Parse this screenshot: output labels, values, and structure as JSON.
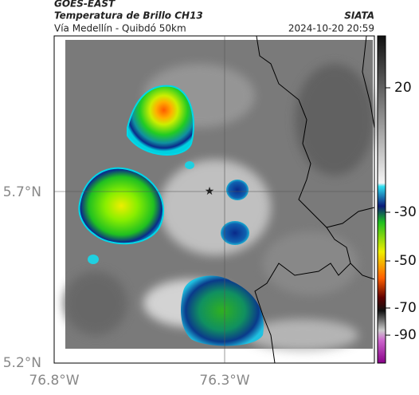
{
  "header": {
    "satellite": "GOES-EAST",
    "product": "Temperatura de Brillo CH13",
    "route": "Vía Medellín - Quibdó 50km",
    "source": "SIATA",
    "timestamp": "2024-10-20 20:59"
  },
  "map": {
    "lat_ticks": [
      "5.7°N",
      "5.2°N"
    ],
    "lon_ticks": [
      "76.8°W",
      "76.3°W"
    ]
  },
  "colorbar": {
    "ticks": [
      20,
      -30,
      -50,
      -70,
      -90
    ]
  }
}
